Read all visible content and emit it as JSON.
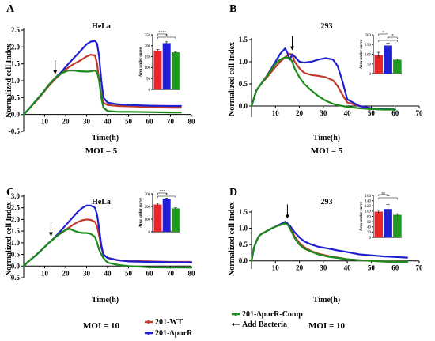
{
  "colors": {
    "wt": "#c0392b",
    "purR": "#1f1fd0",
    "comp": "#1a8a1a",
    "inset_wt": "#e8262a",
    "inset_purR": "#2020d8",
    "inset_comp": "#1f9a1f"
  },
  "legend": {
    "items": [
      {
        "key": "wt",
        "label": "201-WT"
      },
      {
        "key": "comp",
        "label": "201-ΔpurR-Comp"
      },
      {
        "key": "purR",
        "label": "201-ΔpurR"
      },
      {
        "key": "add",
        "label": "Add Bacteria"
      }
    ]
  },
  "chart_data": [
    {
      "panel": "A",
      "type": "line",
      "title": "HeLa",
      "caption": "MOI = 5",
      "xlabel": "Time(h)",
      "ylabel": "Normalized cell Index",
      "xlim": [
        0,
        80
      ],
      "ylim": [
        -0.5,
        2.5
      ],
      "xticks": [
        10,
        20,
        30,
        40,
        50,
        60,
        70,
        80
      ],
      "yticks": [
        -0.5,
        0.0,
        0.5,
        1.0,
        1.5,
        2.0,
        2.5
      ],
      "arrow_x": 15,
      "series": [
        {
          "key": "wt",
          "x": [
            0,
            3,
            6,
            9,
            12,
            15,
            18,
            21,
            24,
            27,
            30,
            32,
            34,
            35,
            36,
            37,
            38,
            40,
            45,
            50,
            60,
            70,
            75
          ],
          "y": [
            0,
            0.2,
            0.4,
            0.62,
            0.85,
            1.05,
            1.22,
            1.38,
            1.5,
            1.6,
            1.72,
            1.77,
            1.75,
            1.5,
            1.0,
            0.55,
            0.35,
            0.28,
            0.25,
            0.24,
            0.22,
            0.2,
            0.2
          ]
        },
        {
          "key": "purR",
          "x": [
            0,
            3,
            6,
            9,
            12,
            15,
            18,
            21,
            24,
            27,
            30,
            32,
            34,
            35,
            36,
            37,
            38,
            40,
            45,
            50,
            60,
            70,
            75
          ],
          "y": [
            0,
            0.2,
            0.42,
            0.64,
            0.88,
            1.08,
            1.26,
            1.48,
            1.68,
            1.88,
            2.08,
            2.16,
            2.18,
            2.1,
            1.7,
            1.0,
            0.5,
            0.35,
            0.3,
            0.28,
            0.26,
            0.25,
            0.25
          ]
        },
        {
          "key": "comp",
          "x": [
            0,
            3,
            6,
            9,
            12,
            15,
            18,
            21,
            24,
            27,
            30,
            32,
            34,
            35,
            36,
            37,
            38,
            40,
            45,
            50,
            60,
            70,
            75
          ],
          "y": [
            0,
            0.2,
            0.42,
            0.64,
            0.88,
            1.08,
            1.22,
            1.3,
            1.3,
            1.28,
            1.27,
            1.28,
            1.3,
            1.25,
            1.0,
            0.5,
            0.2,
            0.1,
            0.08,
            0.08,
            0.07,
            0.06,
            0.06
          ]
        }
      ],
      "inset": {
        "ylabel": "Area under curve",
        "ylim": [
          0,
          250
        ],
        "yticks": [
          0,
          50,
          100,
          150,
          200,
          250
        ],
        "values": [
          178,
          212,
          170
        ],
        "errors": [
          5,
          6,
          4
        ],
        "sig": [
          {
            "a": 0,
            "b": 1,
            "text": "****"
          },
          {
            "a": 0,
            "b": 2,
            "text": "*"
          }
        ]
      }
    },
    {
      "panel": "B",
      "type": "line",
      "title": "293",
      "caption": "MOI = 5",
      "xlabel": "Time(h)",
      "ylabel": "Normalized cell Index",
      "xlim": [
        0,
        70
      ],
      "ylim": [
        -0.25,
        1.5
      ],
      "xticks": [
        10,
        20,
        30,
        40,
        50,
        60,
        70
      ],
      "yticks": [
        0.0,
        0.5,
        1.0,
        1.5
      ],
      "arrow_x": 17,
      "series": [
        {
          "key": "wt",
          "x": [
            0,
            2,
            4,
            6,
            8,
            10,
            12,
            14,
            16,
            17,
            18,
            20,
            22,
            25,
            28,
            31,
            34,
            36,
            38,
            40,
            45,
            50,
            55,
            60
          ],
          "y": [
            0,
            0.35,
            0.5,
            0.62,
            0.75,
            0.88,
            1.0,
            1.1,
            1.18,
            1.15,
            1.0,
            0.85,
            0.75,
            0.7,
            0.68,
            0.65,
            0.58,
            0.45,
            0.25,
            0.08,
            0.0,
            -0.05,
            -0.07,
            -0.08
          ]
        },
        {
          "key": "purR",
          "x": [
            0,
            2,
            4,
            6,
            8,
            10,
            12,
            14,
            15,
            16,
            17,
            18,
            20,
            22,
            25,
            28,
            31,
            34,
            36,
            38,
            40,
            45,
            50,
            55,
            60
          ],
          "y": [
            0,
            0.35,
            0.5,
            0.65,
            0.82,
            1.0,
            1.18,
            1.3,
            1.2,
            1.05,
            1.17,
            1.12,
            1.0,
            0.98,
            1.0,
            1.05,
            1.08,
            1.05,
            0.9,
            0.55,
            0.15,
            0.0,
            -0.05,
            -0.07,
            -0.08
          ]
        },
        {
          "key": "comp",
          "x": [
            0,
            2,
            4,
            6,
            8,
            10,
            12,
            14,
            16,
            17,
            18,
            20,
            22,
            25,
            28,
            31,
            34,
            36,
            38,
            40,
            45,
            50,
            55,
            60
          ],
          "y": [
            0,
            0.35,
            0.5,
            0.65,
            0.8,
            0.95,
            1.05,
            1.1,
            1.08,
            1.0,
            0.85,
            0.65,
            0.5,
            0.35,
            0.22,
            0.12,
            0.05,
            0.02,
            0.0,
            -0.02,
            -0.05,
            -0.07,
            -0.08,
            -0.08
          ]
        }
      ],
      "inset": {
        "ylabel": "Area under curve",
        "ylim": [
          0,
          200
        ],
        "yticks": [
          0,
          50,
          100,
          150,
          200
        ],
        "values": [
          95,
          145,
          72
        ],
        "errors": [
          15,
          12,
          4
        ],
        "sig": [
          {
            "a": 0,
            "b": 1,
            "text": "*"
          },
          {
            "a": 1,
            "b": 2,
            "text": "*"
          },
          {
            "a": 0,
            "b": 2,
            "text": "*"
          }
        ]
      }
    },
    {
      "panel": "C",
      "type": "line",
      "title": "HeLa",
      "caption": "MOI = 10",
      "xlabel": "Time(h)",
      "ylabel": "Normalized cell Index",
      "xlim": [
        0,
        80
      ],
      "ylim": [
        -0.5,
        3.0
      ],
      "xticks": [
        10,
        20,
        30,
        40,
        50,
        60,
        70,
        80
      ],
      "yticks": [
        -0.5,
        0.0,
        0.5,
        1.0,
        1.5,
        2.0,
        2.5,
        3.0
      ],
      "arrow_x": 13,
      "series": [
        {
          "key": "wt",
          "x": [
            0,
            2,
            4,
            6,
            8,
            10,
            12,
            14,
            16,
            18,
            20,
            22,
            24,
            26,
            28,
            30,
            32,
            34,
            35,
            36,
            37,
            38,
            40,
            45,
            50,
            60,
            70,
            80
          ],
          "y": [
            0,
            0.18,
            0.33,
            0.48,
            0.65,
            0.82,
            1.0,
            1.15,
            1.3,
            1.42,
            1.55,
            1.68,
            1.8,
            1.9,
            1.97,
            2.0,
            1.98,
            1.9,
            1.7,
            1.3,
            0.8,
            0.5,
            0.35,
            0.25,
            0.22,
            0.2,
            0.18,
            0.18
          ]
        },
        {
          "key": "purR",
          "x": [
            0,
            2,
            4,
            6,
            8,
            10,
            12,
            14,
            16,
            18,
            20,
            22,
            24,
            26,
            28,
            30,
            32,
            34,
            35,
            36,
            37,
            38,
            40,
            45,
            50,
            60,
            70,
            80
          ],
          "y": [
            0,
            0.18,
            0.33,
            0.48,
            0.65,
            0.82,
            1.0,
            1.15,
            1.35,
            1.55,
            1.75,
            1.95,
            2.15,
            2.35,
            2.5,
            2.6,
            2.6,
            2.5,
            2.2,
            1.6,
            0.9,
            0.5,
            0.35,
            0.25,
            0.2,
            0.18,
            0.17,
            0.16
          ]
        },
        {
          "key": "comp",
          "x": [
            0,
            2,
            4,
            6,
            8,
            10,
            12,
            14,
            16,
            18,
            20,
            22,
            24,
            26,
            28,
            30,
            32,
            34,
            35,
            36,
            37,
            38,
            40,
            45,
            50,
            60,
            70,
            80
          ],
          "y": [
            0,
            0.18,
            0.33,
            0.48,
            0.65,
            0.82,
            1.0,
            1.15,
            1.3,
            1.45,
            1.55,
            1.6,
            1.52,
            1.45,
            1.42,
            1.42,
            1.38,
            1.25,
            1.0,
            0.7,
            0.5,
            0.35,
            0.15,
            0.05,
            0.0,
            -0.05,
            -0.06,
            -0.06
          ]
        }
      ],
      "inset": {
        "ylabel": "Area under curve",
        "ylim": [
          0,
          300
        ],
        "yticks": [
          0,
          100,
          200,
          300
        ],
        "values": [
          215,
          262,
          185
        ],
        "errors": [
          10,
          5,
          4
        ],
        "sig": [
          {
            "a": 0,
            "b": 1,
            "text": "***"
          },
          {
            "a": 0,
            "b": 2,
            "text": "*"
          }
        ]
      }
    },
    {
      "panel": "D",
      "type": "line",
      "title": "293",
      "caption": "MOI = 10",
      "xlabel": "Time(h)",
      "ylabel": "Normalized cell Index",
      "xlim": [
        0,
        70
      ],
      "ylim": [
        -0.25,
        1.5
      ],
      "xticks": [
        10,
        20,
        30,
        40,
        50,
        60,
        70
      ],
      "yticks": [
        0.0,
        0.5,
        1.0,
        1.5
      ],
      "arrow_x": 15,
      "series": [
        {
          "key": "wt",
          "x": [
            0,
            1,
            2,
            3,
            4,
            6,
            8,
            10,
            12,
            14,
            15,
            16,
            17,
            18,
            20,
            22,
            25,
            28,
            32,
            36,
            40,
            45,
            50,
            55,
            60,
            65
          ],
          "y": [
            0,
            0.4,
            0.6,
            0.75,
            0.82,
            0.9,
            0.98,
            1.05,
            1.12,
            1.18,
            1.15,
            1.05,
            0.9,
            0.75,
            0.55,
            0.42,
            0.3,
            0.22,
            0.15,
            0.1,
            0.05,
            0.02,
            0.0,
            -0.02,
            -0.03,
            -0.03
          ]
        },
        {
          "key": "purR",
          "x": [
            0,
            1,
            2,
            3,
            4,
            6,
            8,
            10,
            12,
            14,
            15,
            16,
            17,
            18,
            20,
            22,
            25,
            28,
            32,
            36,
            40,
            45,
            50,
            55,
            60,
            65
          ],
          "y": [
            0,
            0.4,
            0.6,
            0.75,
            0.82,
            0.9,
            0.98,
            1.05,
            1.12,
            1.2,
            1.15,
            1.08,
            0.98,
            0.88,
            0.72,
            0.6,
            0.5,
            0.43,
            0.38,
            0.32,
            0.27,
            0.2,
            0.17,
            0.14,
            0.12,
            0.1
          ]
        },
        {
          "key": "comp",
          "x": [
            0,
            1,
            2,
            3,
            4,
            6,
            8,
            10,
            12,
            14,
            15,
            16,
            17,
            18,
            20,
            22,
            25,
            28,
            32,
            36,
            40,
            45,
            50,
            55,
            60,
            65
          ],
          "y": [
            0,
            0.4,
            0.6,
            0.75,
            0.82,
            0.9,
            0.98,
            1.05,
            1.1,
            1.15,
            1.12,
            1.0,
            0.85,
            0.7,
            0.5,
            0.38,
            0.28,
            0.2,
            0.13,
            0.09,
            0.05,
            0.02,
            0.0,
            -0.02,
            -0.03,
            -0.03
          ]
        }
      ],
      "inset": {
        "ylabel": "Area under curve",
        "ylim": [
          0,
          160
        ],
        "yticks": [
          0,
          20,
          40,
          60,
          80,
          100,
          120,
          140,
          160
        ],
        "values": [
          98,
          108,
          86
        ],
        "errors": [
          6,
          18,
          4
        ],
        "sig": [
          {
            "a": 0,
            "b": 1,
            "text": "ns"
          },
          {
            "a": 0,
            "b": 2,
            "text": "**"
          }
        ]
      }
    }
  ]
}
